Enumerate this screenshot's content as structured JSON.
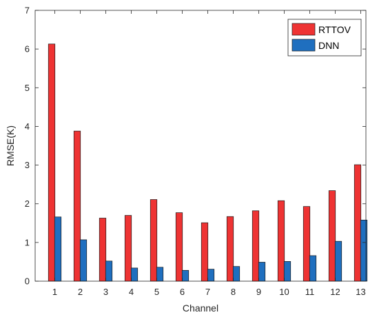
{
  "chart_data": {
    "type": "bar",
    "title": "",
    "xlabel": "Channel",
    "ylabel": "RMSE(K)",
    "ylim": [
      0,
      7
    ],
    "yticks": [
      0,
      1,
      2,
      3,
      4,
      5,
      6,
      7
    ],
    "categories": [
      "1",
      "2",
      "3",
      "4",
      "5",
      "6",
      "7",
      "8",
      "9",
      "10",
      "11",
      "12",
      "13"
    ],
    "series": [
      {
        "name": "RTTOV",
        "color": "#ee3333",
        "values": [
          6.13,
          3.88,
          1.63,
          1.7,
          2.11,
          1.77,
          1.51,
          1.67,
          1.82,
          2.08,
          1.93,
          2.34,
          3.01
        ]
      },
      {
        "name": "DNN",
        "color": "#1f6fbf",
        "values": [
          1.66,
          1.07,
          0.52,
          0.34,
          0.36,
          0.28,
          0.31,
          0.38,
          0.49,
          0.51,
          0.66,
          1.03,
          1.58
        ]
      }
    ],
    "grid": false,
    "legend": "top-right"
  }
}
